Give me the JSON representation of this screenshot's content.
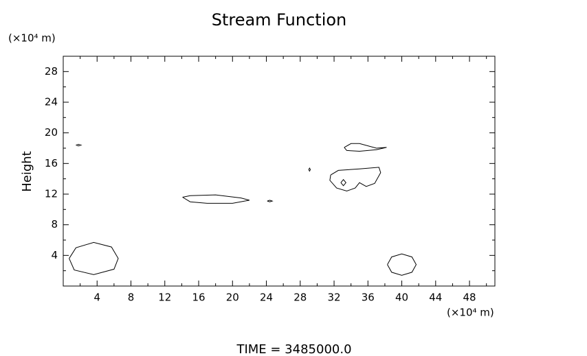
{
  "chart_data": {
    "type": "contour",
    "title": "Stream Function",
    "ylabel": "Height",
    "y_unit": "(×10⁴ m)",
    "x_unit": "(×10⁴ m)",
    "annotation": "TIME = 3485000.0",
    "xlim": [
      0,
      51
    ],
    "ylim": [
      0,
      30
    ],
    "xticks": [
      4,
      8,
      12,
      16,
      20,
      24,
      28,
      32,
      36,
      40,
      44,
      48
    ],
    "yticks": [
      4,
      8,
      12,
      16,
      20,
      24,
      28
    ],
    "xminorticks": [
      2,
      6,
      10,
      14,
      18,
      22,
      26,
      30,
      34,
      38,
      42,
      46,
      50
    ],
    "yminorticks": [
      2,
      6,
      10,
      14,
      18,
      22,
      26,
      30
    ],
    "color": "#000000",
    "contours": [
      {
        "x": [
          0.7,
          1.5,
          3.6,
          5.7,
          6.5,
          6.0,
          3.6,
          1.3,
          0.7
        ],
        "y": [
          3.6,
          5.0,
          5.7,
          5.1,
          3.6,
          2.2,
          1.5,
          2.1,
          3.6
        ]
      },
      {
        "x": [
          38.3,
          38.8,
          40.0,
          41.2,
          41.7,
          41.2,
          40.0,
          38.8,
          38.3
        ],
        "y": [
          2.8,
          3.8,
          4.2,
          3.8,
          2.8,
          1.8,
          1.4,
          1.8,
          2.8
        ]
      },
      {
        "x": [
          14.1,
          15,
          18,
          21,
          22,
          20,
          17,
          15,
          14.1
        ],
        "y": [
          11.6,
          11.8,
          11.9,
          11.5,
          11.2,
          10.8,
          10.8,
          11.0,
          11.6
        ]
      },
      {
        "x": [
          24.1,
          24.4,
          24.7,
          24.4,
          24.1
        ],
        "y": [
          11.1,
          11.2,
          11.1,
          11.0,
          11.1
        ]
      },
      {
        "x": [
          29,
          29.1,
          29.2,
          29.1,
          29
        ],
        "y": [
          15.2,
          15.4,
          15.2,
          15.0,
          15.2
        ]
      },
      {
        "x": [
          1.5,
          1.8,
          2.1,
          1.8,
          1.5
        ],
        "y": [
          18.4,
          18.5,
          18.4,
          18.3,
          18.4
        ]
      },
      {
        "x": [
          33.2,
          34,
          35,
          37,
          38.2,
          37,
          35,
          33.5,
          33.2
        ],
        "y": [
          18.1,
          18.6,
          18.6,
          18.0,
          18.1,
          17.8,
          17.6,
          17.7,
          18.1
        ]
      },
      {
        "x": [
          31.6,
          32.5,
          35,
          37.3,
          37.5,
          36.8,
          35.8,
          35,
          34.5,
          33.5,
          32.3,
          31.5,
          31.6
        ],
        "y": [
          14.5,
          15.1,
          15.3,
          15.5,
          14.8,
          13.4,
          13.0,
          13.5,
          12.8,
          12.4,
          12.8,
          13.8,
          14.5
        ]
      },
      {
        "x": [
          32.8,
          33.1,
          33.4,
          33.1,
          32.8
        ],
        "y": [
          13.5,
          13.9,
          13.5,
          13.1,
          13.5
        ]
      }
    ]
  }
}
